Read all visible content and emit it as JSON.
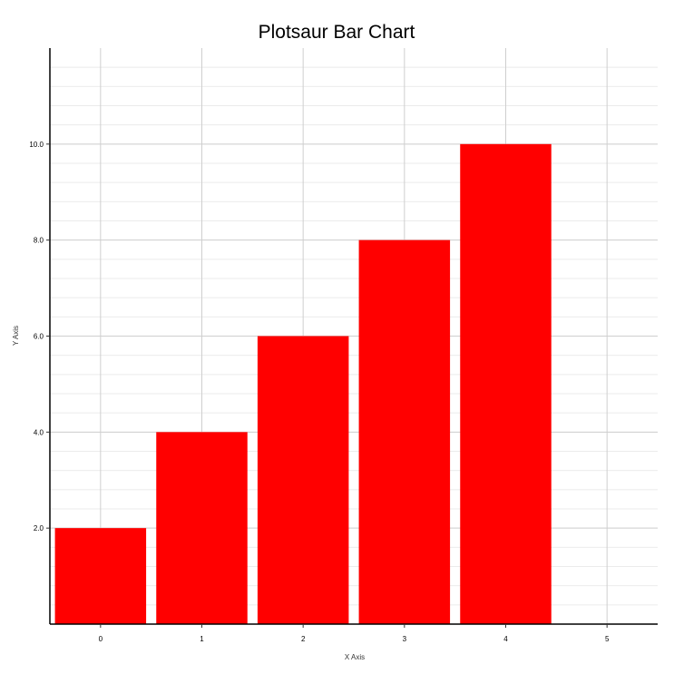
{
  "chart_data": {
    "type": "bar",
    "title": "Plotsaur Bar Chart",
    "xlabel": "X Axis",
    "ylabel": "Y Axis",
    "categories": [
      "0",
      "1",
      "2",
      "3",
      "4"
    ],
    "x_ticks": [
      "0",
      "1",
      "2",
      "3",
      "4",
      "5"
    ],
    "values": [
      2,
      4,
      6,
      8,
      10
    ],
    "y_ticks": [
      "2.0",
      "4.0",
      "6.0",
      "8.0",
      "10.0"
    ],
    "ylim": [
      0,
      12
    ],
    "xlim": [
      -0.5,
      5.5
    ],
    "bar_color": "#ff0000",
    "grid": true,
    "legend": "none"
  }
}
